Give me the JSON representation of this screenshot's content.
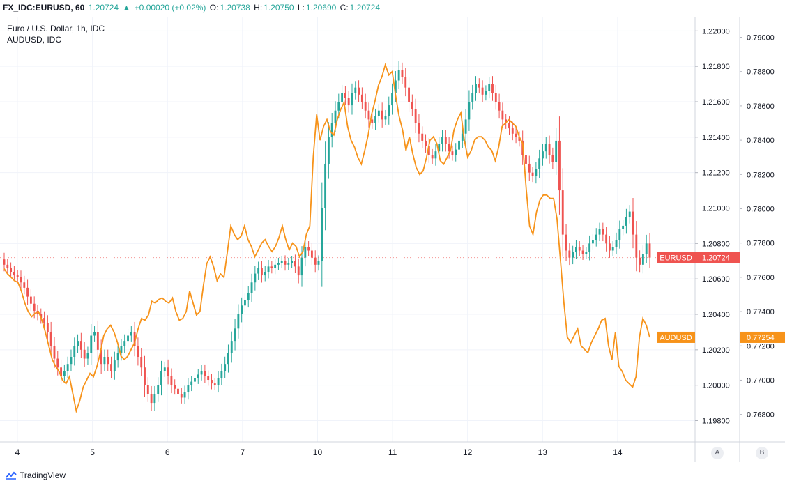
{
  "header": {
    "symbol": "FX_IDC:EURUSD, 60",
    "last": "1.20724",
    "change_arrow": "▲",
    "change": "+0.00020 (+0.02%)",
    "open_label": "O:",
    "open": "1.20738",
    "high_label": "H:",
    "high": "1.20750",
    "low_label": "L:",
    "low": "1.20690",
    "close_label": "C:",
    "close": "1.20724"
  },
  "legend": {
    "main": "Euro / U.S. Dollar, 1h, IDC",
    "compare": "AUDUSD, IDC"
  },
  "footer": {
    "brand": "TradingView",
    "scale_a": "A",
    "scale_b": "B"
  },
  "colors": {
    "up": "#26a69a",
    "down": "#ef5350",
    "audusd": "#f7931a",
    "eurusd_badge": "#ef5350"
  },
  "chart_data": {
    "type": "candlestick+line",
    "x_axis": {
      "ticks": [
        "4",
        "5",
        "6",
        "7",
        "10",
        "11",
        "12",
        "13",
        "14"
      ],
      "range": [
        0,
        8.8
      ]
    },
    "y_axis_left": {
      "series": "EURUSD",
      "range": [
        1.1968,
        1.2208
      ],
      "ticks": [
        "1.22000",
        "1.21800",
        "1.21600",
        "1.21400",
        "1.21200",
        "1.21000",
        "1.20800",
        "1.20600",
        "1.20400",
        "1.20200",
        "1.20000",
        "1.19800"
      ],
      "tick_values": [
        1.22,
        1.218,
        1.216,
        1.214,
        1.212,
        1.21,
        1.208,
        1.206,
        1.204,
        1.202,
        1.2,
        1.198
      ]
    },
    "y_axis_right": {
      "series": "AUDUSD",
      "range": [
        0.7664,
        0.7912
      ],
      "ticks": [
        "0.79000",
        "0.78800",
        "0.78600",
        "0.78400",
        "0.78200",
        "0.78000",
        "0.77800",
        "0.77600",
        "0.77400",
        "0.77200",
        "0.77000",
        "0.76800"
      ],
      "tick_values": [
        0.79,
        0.788,
        0.786,
        0.784,
        0.782,
        0.78,
        0.778,
        0.776,
        0.774,
        0.772,
        0.77,
        0.768
      ]
    },
    "grid": true,
    "series": [
      {
        "name": "EURUSD",
        "kind": "candlestick",
        "last_label": "1.20724",
        "badge_label": "EURUSD",
        "close": [
          1.2068,
          1.2066,
          1.2064,
          1.2062,
          1.2061,
          1.2058,
          1.2055,
          1.205,
          1.2046,
          1.2042,
          1.204,
          1.2038,
          1.2035,
          1.203,
          1.2022,
          1.2015,
          1.201,
          1.2005,
          1.2008,
          1.2012,
          1.2016,
          1.2022,
          1.2025,
          1.202,
          1.2015,
          1.2018,
          1.2028,
          1.203,
          1.202,
          1.2012,
          1.2016,
          1.2012,
          1.2008,
          1.2014,
          1.2018,
          1.2022,
          1.2025,
          1.2028,
          1.203,
          1.2022,
          1.2016,
          1.201,
          1.2,
          1.1995,
          1.199,
          1.1995,
          1.2,
          1.2008,
          1.201,
          1.2005,
          1.2,
          1.1998,
          1.1995,
          1.1993,
          1.1996,
          1.2,
          1.2002,
          1.2004,
          1.2006,
          1.2008,
          1.2005,
          1.2003,
          1.2001,
          1.2,
          1.2004,
          1.2008,
          1.2012,
          1.2018,
          1.2025,
          1.2032,
          1.204,
          1.2045,
          1.2048,
          1.2052,
          1.2058,
          1.2063,
          1.2066,
          1.2062,
          1.2064,
          1.2067,
          1.2066,
          1.2068,
          1.2069,
          1.207,
          1.2068,
          1.2069,
          1.207,
          1.2067,
          1.2062,
          1.2072,
          1.2078,
          1.2076,
          1.2072,
          1.2068,
          1.207,
          1.21,
          1.2125,
          1.214,
          1.2148,
          1.2155,
          1.216,
          1.2165,
          1.2162,
          1.2158,
          1.2165,
          1.2168,
          1.2164,
          1.216,
          1.2155,
          1.215,
          1.2148,
          1.2152,
          1.2155,
          1.215,
          1.2152,
          1.2158,
          1.2165,
          1.2172,
          1.2178,
          1.2174,
          1.2168,
          1.216,
          1.2156,
          1.2148,
          1.2142,
          1.2138,
          1.2135,
          1.213,
          1.2128,
          1.2132,
          1.2136,
          1.214,
          1.2136,
          1.2132,
          1.213,
          1.2133,
          1.2138,
          1.2142,
          1.215,
          1.216,
          1.2165,
          1.217,
          1.2168,
          1.2164,
          1.2166,
          1.217,
          1.2165,
          1.216,
          1.2155,
          1.215,
          1.2148,
          1.2145,
          1.2142,
          1.214,
          1.2138,
          1.213,
          1.2125,
          1.212,
          1.2118,
          1.2122,
          1.2128,
          1.2132,
          1.2136,
          1.213,
          1.2126,
          1.2138,
          1.211,
          1.2085,
          1.2076,
          1.2072,
          1.2075,
          1.2078,
          1.2076,
          1.2074,
          1.2075,
          1.208,
          1.2082,
          1.2085,
          1.2088,
          1.2085,
          1.208,
          1.2076,
          1.2078,
          1.2082,
          1.2088,
          1.209,
          1.2095,
          1.2098,
          1.2085,
          1.2072,
          1.2068,
          1.2074,
          1.208,
          1.2072
        ]
      },
      {
        "name": "AUDUSD",
        "kind": "line",
        "last_label": "0.77254",
        "badge_label": "AUDUSD",
        "values": [
          0.7765,
          0.7762,
          0.776,
          0.7758,
          0.7757,
          0.7752,
          0.7745,
          0.774,
          0.7737,
          0.7739,
          0.774,
          0.7735,
          0.7728,
          0.772,
          0.7712,
          0.7708,
          0.7705,
          0.77,
          0.7698,
          0.7702,
          0.7692,
          0.7682,
          0.7688,
          0.7696,
          0.77,
          0.7704,
          0.7702,
          0.7708,
          0.7716,
          0.7726,
          0.773,
          0.7732,
          0.7728,
          0.7722,
          0.7714,
          0.7712,
          0.7714,
          0.7718,
          0.7722,
          0.773,
          0.7736,
          0.7735,
          0.7738,
          0.7746,
          0.7745,
          0.7747,
          0.7748,
          0.7746,
          0.7745,
          0.7748,
          0.774,
          0.7735,
          0.7736,
          0.774,
          0.7752,
          0.7745,
          0.7738,
          0.774,
          0.7755,
          0.7768,
          0.7772,
          0.7766,
          0.7758,
          0.7762,
          0.776,
          0.7775,
          0.779,
          0.7785,
          0.7782,
          0.7784,
          0.779,
          0.7782,
          0.7778,
          0.7772,
          0.7776,
          0.778,
          0.7782,
          0.7778,
          0.7775,
          0.7778,
          0.7783,
          0.779,
          0.7782,
          0.7776,
          0.778,
          0.7778,
          0.7772,
          0.7775,
          0.7785,
          0.779,
          0.783,
          0.7855,
          0.784,
          0.7848,
          0.7852,
          0.7845,
          0.7843,
          0.7852,
          0.7858,
          0.7862,
          0.7848,
          0.784,
          0.7836,
          0.783,
          0.7826,
          0.7834,
          0.7843,
          0.7855,
          0.7863,
          0.7872,
          0.7877,
          0.7884,
          0.7878,
          0.788,
          0.7866,
          0.7854,
          0.7846,
          0.7834,
          0.7842,
          0.7832,
          0.7824,
          0.782,
          0.7822,
          0.783,
          0.784,
          0.7842,
          0.7838,
          0.7828,
          0.7826,
          0.783,
          0.7834,
          0.7846,
          0.7852,
          0.7856,
          0.784,
          0.783,
          0.7834,
          0.784,
          0.7842,
          0.7842,
          0.784,
          0.7836,
          0.7834,
          0.7828,
          0.7836,
          0.7848,
          0.785,
          0.7852,
          0.785,
          0.7848,
          0.7842,
          0.7838,
          0.7812,
          0.779,
          0.7785,
          0.7798,
          0.7805,
          0.7808,
          0.7808,
          0.7806,
          0.7806,
          0.7794,
          0.777,
          0.7745,
          0.7725,
          0.7722,
          0.7726,
          0.773,
          0.772,
          0.7718,
          0.7716,
          0.7722,
          0.7726,
          0.773,
          0.7735,
          0.7736,
          0.772,
          0.7712,
          0.7728,
          0.7708,
          0.7705,
          0.77,
          0.7698,
          0.7696,
          0.7702,
          0.7725,
          0.7736,
          0.7732,
          0.7725
        ]
      }
    ]
  }
}
